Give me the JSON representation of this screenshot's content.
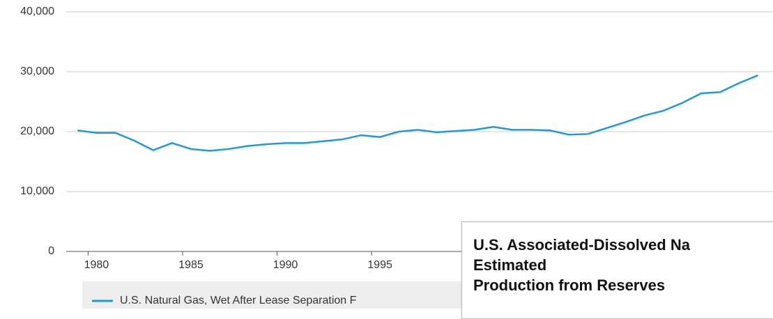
{
  "chart_data": {
    "type": "line",
    "x": [
      1979,
      1980,
      1981,
      1982,
      1983,
      1984,
      1985,
      1986,
      1987,
      1988,
      1989,
      1990,
      1991,
      1992,
      1993,
      1994,
      1995,
      1996,
      1997,
      1998,
      1999,
      2000,
      2001,
      2002,
      2003,
      2004,
      2005,
      2006,
      2007,
      2008,
      2009,
      2010,
      2011,
      2012,
      2013,
      2014,
      2015
    ],
    "series": [
      {
        "name": "U.S. Natural Gas, Wet After Lease Separation F",
        "color": "#1f9ad6",
        "values": [
          20200,
          19800,
          19800,
          18500,
          16900,
          18100,
          17100,
          16800,
          17100,
          17600,
          17900,
          18100,
          18100,
          18400,
          18700,
          19400,
          19100,
          20000,
          20300,
          19900,
          20100,
          20300,
          20800,
          20300,
          20300,
          20200,
          19500,
          19600,
          20600,
          21600,
          22700,
          23500,
          24800,
          26400,
          26600,
          28100,
          29400
        ]
      }
    ],
    "xlim": [
      1978.4,
      2015.8
    ],
    "xticks": [
      1980,
      1985,
      1990,
      1995
    ],
    "ylim": [
      0,
      40000
    ],
    "yticks": [
      0,
      {
        "value": 10000,
        "label": "10,000"
      },
      {
        "value": 20000,
        "label": "20,000"
      },
      {
        "value": 30000,
        "label": "30,000"
      },
      {
        "value": 40000,
        "label": "40,000"
      }
    ],
    "grid": true,
    "tooltip": [
      "U.S. Associated-Dissolved Na",
      "Estimated",
      "Production from Reserves"
    ]
  }
}
